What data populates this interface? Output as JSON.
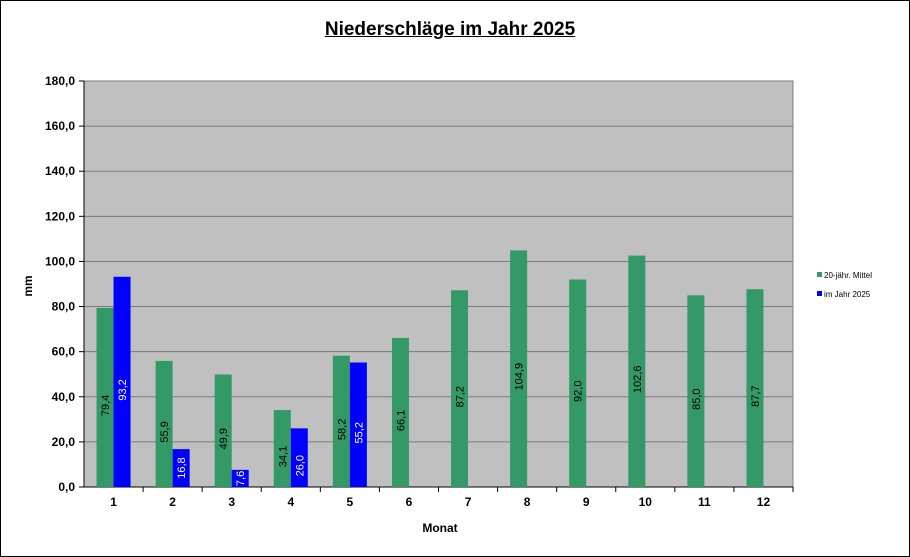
{
  "chart_data": {
    "type": "bar",
    "title": "Niederschläge im Jahr  2025",
    "xlabel": "Monat",
    "ylabel": "mm",
    "ylim": [
      0,
      180
    ],
    "yticks": [
      "0,0",
      "20,0",
      "40,0",
      "60,0",
      "80,0",
      "100,0",
      "120,0",
      "140,0",
      "160,0",
      "180,0"
    ],
    "categories": [
      "1",
      "2",
      "3",
      "4",
      "5",
      "6",
      "7",
      "8",
      "9",
      "10",
      "11",
      "12"
    ],
    "series": [
      {
        "name": "20-jähr. Mittel",
        "color": "#339966",
        "values": [
          79.4,
          55.9,
          49.9,
          34.1,
          58.2,
          66.1,
          87.2,
          104.9,
          92.0,
          102.6,
          85.0,
          87.7
        ],
        "labels": [
          "79,4",
          "55,9",
          "49,9",
          "34,1",
          "58,2",
          "66,1",
          "87,2",
          "104,9",
          "92,0",
          "102,6",
          "85,0",
          "87,7"
        ]
      },
      {
        "name": "im Jahr 2025",
        "color": "#0000ff",
        "values": [
          93.2,
          16.8,
          7.6,
          26.0,
          55.2,
          null,
          null,
          null,
          null,
          null,
          null,
          null
        ],
        "labels": [
          "93,2",
          "16,8",
          "7,6",
          "26,0",
          "55,2",
          null,
          null,
          null,
          null,
          null,
          null,
          null
        ]
      }
    ],
    "grid": true,
    "plot_background": "#c0c0c0",
    "legend_position": "right"
  }
}
